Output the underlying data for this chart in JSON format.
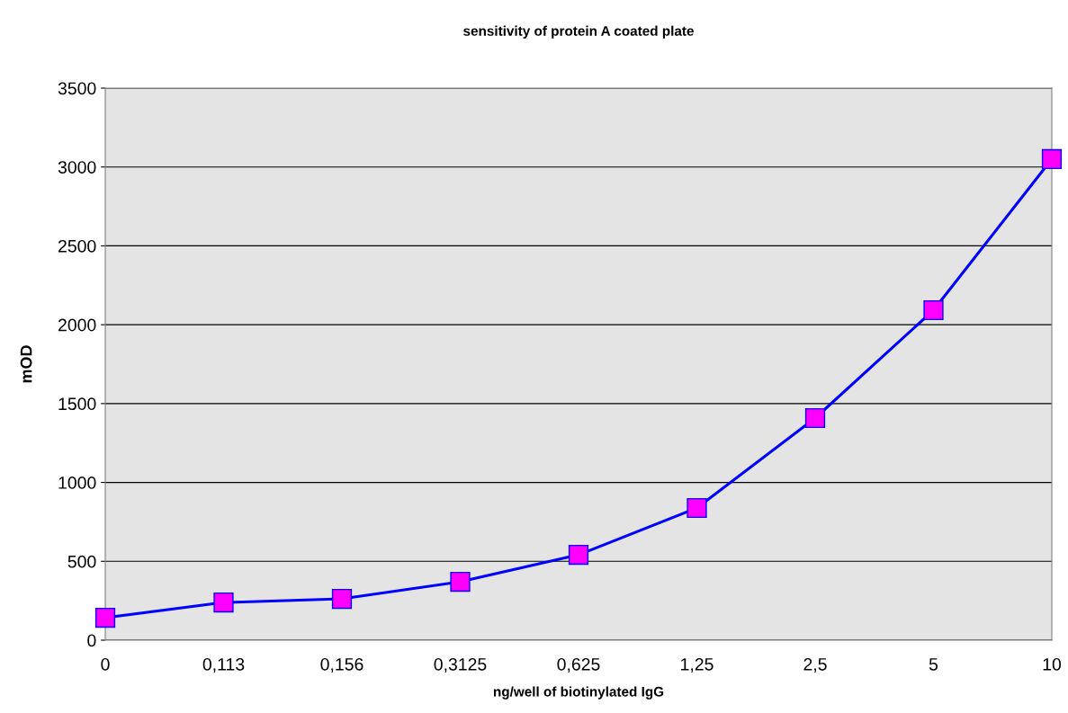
{
  "chart_data": {
    "type": "line",
    "title": "sensitivity of protein A coated plate",
    "xlabel": "ng/well of biotinylated IgG",
    "ylabel": "mOD",
    "categories": [
      "0",
      "0,113",
      "0,156",
      "0,3125",
      "0,625",
      "1,25",
      "2,5",
      "5",
      "10"
    ],
    "series": [
      {
        "color": "#0000ff",
        "values": [
          142,
          239,
          262,
          370,
          541,
          838,
          1408,
          2092,
          3050
        ]
      }
    ],
    "ylim": [
      0,
      3500
    ],
    "yticks": [
      0,
      500,
      1000,
      1500,
      2000,
      2500,
      3000,
      3500
    ],
    "grid": "y",
    "marker": "square",
    "line_style": "solid",
    "legend": false
  }
}
